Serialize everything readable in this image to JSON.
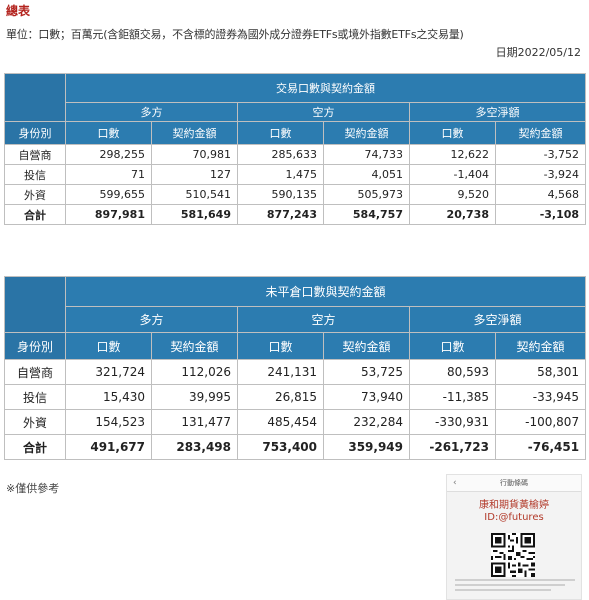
{
  "title": "總表",
  "subtitle": "單位：口數；百萬元(含鉅額交易，不含標的證券為國外成分證券ETFs或境外指數ETFs之交易量)",
  "date": "日期2022/05/12",
  "table1": {
    "title": "交易口數與契約金額",
    "groups": [
      "多方",
      "空方",
      "多空淨額"
    ],
    "role_header": "身份別",
    "col_headers": [
      "口數",
      "契約金額",
      "口數",
      "契約金額",
      "口數",
      "契約金額"
    ],
    "rows": [
      {
        "label": "自營商",
        "values": [
          "298,255",
          "70,981",
          "285,633",
          "74,733",
          "12,622",
          "-3,752"
        ]
      },
      {
        "label": "投信",
        "values": [
          "71",
          "127",
          "1,475",
          "4,051",
          "-1,404",
          "-3,924"
        ]
      },
      {
        "label": "外資",
        "values": [
          "599,655",
          "510,541",
          "590,135",
          "505,973",
          "9,520",
          "4,568"
        ]
      },
      {
        "label": "合計",
        "values": [
          "897,981",
          "581,649",
          "877,243",
          "584,757",
          "20,738",
          "-3,108"
        ]
      }
    ]
  },
  "table2": {
    "title": "未平倉口數與契約金額",
    "groups": [
      "多方",
      "空方",
      "多空淨額"
    ],
    "role_header": "身份別",
    "col_headers": [
      "口數",
      "契約金額",
      "口數",
      "契約金額",
      "口數",
      "契約金額"
    ],
    "rows": [
      {
        "label": "自營商",
        "values": [
          "321,724",
          "112,026",
          "241,131",
          "53,725",
          "80,593",
          "58,301"
        ]
      },
      {
        "label": "投信",
        "values": [
          "15,430",
          "39,995",
          "26,815",
          "73,940",
          "-11,385",
          "-33,945"
        ]
      },
      {
        "label": "外資",
        "values": [
          "154,523",
          "131,477",
          "485,454",
          "232,284",
          "-330,931",
          "-100,807"
        ]
      },
      {
        "label": "合計",
        "values": [
          "491,677",
          "283,498",
          "753,400",
          "359,949",
          "-261,723",
          "-76,451"
        ]
      }
    ]
  },
  "note": "※僅供參考",
  "ad": {
    "header": "行動條碼",
    "back_icon": "chevron-left-icon",
    "name": "康和期貨黃榆婷",
    "id": "ID:@futures",
    "qr_icon": "qr-code-icon"
  },
  "colors": {
    "header_bg": "#2c7cb0",
    "title_red": "#b3231e",
    "ad_text": "#b23a2a"
  }
}
